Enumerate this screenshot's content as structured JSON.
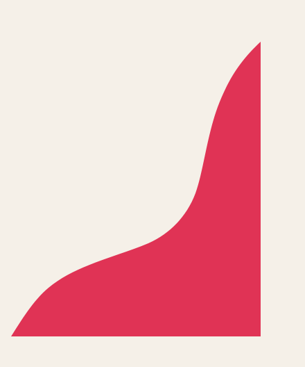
{
  "colors": {
    "background": "#F5F0E8",
    "shape_fill": "#E03355"
  },
  "artwork": {
    "shape_icon": "abstract-curve-shape"
  }
}
